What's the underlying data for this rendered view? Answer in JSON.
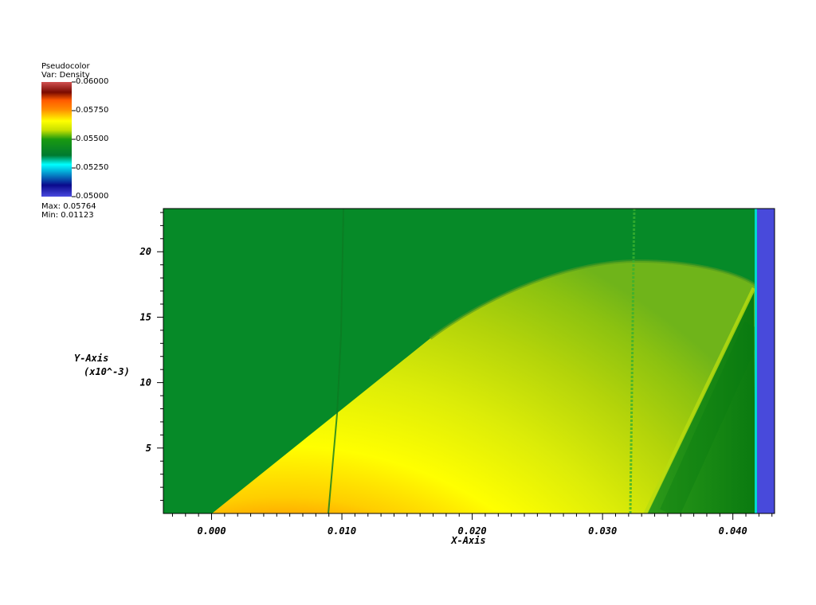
{
  "legend": {
    "plot_type": "Pseudocolor",
    "variable": "Var: Density",
    "max_label": "Max: 0.05764",
    "min_label": "Min: 0.01123",
    "ticks": [
      "0.06000",
      "0.05750",
      "0.05500",
      "0.05250",
      "0.05000"
    ]
  },
  "chart_data": {
    "type": "heatmap",
    "variable": "Density",
    "color_range": [
      0.05,
      0.06
    ],
    "data_max": 0.05764,
    "data_min": 0.01123,
    "xlabel": "X-Axis",
    "ylabel": "Y-Axis",
    "ylabel_scale": "(x10^-3)",
    "xlim": [
      -0.0037,
      0.0432
    ],
    "ylim": [
      0,
      23.3
    ],
    "x_ticks": [
      "0.000",
      "0.010",
      "0.020",
      "0.030",
      "0.040"
    ],
    "x_tick_values": [
      0.0,
      0.01,
      0.02,
      0.03,
      0.04
    ],
    "y_ticks": [
      "5",
      "10",
      "15",
      "20"
    ],
    "y_tick_values": [
      5,
      10,
      15,
      20
    ],
    "colormap": [
      "#4a4adf",
      "#0a0a8c",
      "#00ffff",
      "#008a20",
      "#ffff00",
      "#ff6a00",
      "#8c0a0a",
      "#c94f4f"
    ],
    "regions": {
      "ambient_color": "#068a28",
      "wedge_color": "#ff6a00",
      "bubble_color": "#f5ff00",
      "inflow_color": "#484adb"
    }
  }
}
